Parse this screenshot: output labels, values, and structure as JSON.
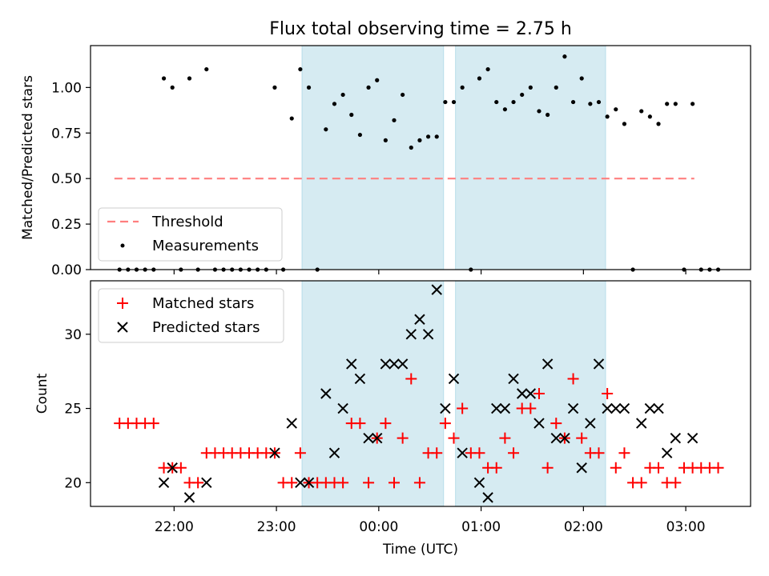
{
  "chart_data": [
    {
      "type": "scatter",
      "title": "Flux total observing time = 2.75 h",
      "xlabel": "",
      "ylabel": "Matched/Predicted stars",
      "ylim": [
        0,
        1.23
      ],
      "yticks": [
        "0.00",
        "0.25",
        "0.50",
        "0.75",
        "1.00"
      ],
      "shaded_spans": [
        [
          "23:15",
          "00:38"
        ],
        [
          "00:45",
          "02:13"
        ]
      ],
      "threshold": {
        "name": "Threshold",
        "y": 0.5,
        "x": [
          "21:25",
          "03:05"
        ],
        "color": "#ff7f7f"
      },
      "series": [
        {
          "name": "Measurements",
          "color": "#000000",
          "points": [
            [
              "21:28",
              0
            ],
            [
              "21:33",
              0
            ],
            [
              "21:38",
              0
            ],
            [
              "21:43",
              0
            ],
            [
              "21:48",
              0
            ],
            [
              "21:54",
              1.05
            ],
            [
              "21:59",
              1.0
            ],
            [
              "22:04",
              0
            ],
            [
              "22:09",
              1.05
            ],
            [
              "22:14",
              0
            ],
            [
              "22:19",
              1.1
            ],
            [
              "22:24",
              0
            ],
            [
              "22:29",
              0
            ],
            [
              "22:34",
              0
            ],
            [
              "22:39",
              0
            ],
            [
              "22:44",
              0
            ],
            [
              "22:49",
              0
            ],
            [
              "22:54",
              0
            ],
            [
              "22:59",
              1.0
            ],
            [
              "23:04",
              0
            ],
            [
              "23:09",
              0.83
            ],
            [
              "23:14",
              1.1
            ],
            [
              "23:19",
              1.0
            ],
            [
              "23:24",
              0
            ],
            [
              "23:29",
              0.77
            ],
            [
              "23:34",
              0.91
            ],
            [
              "23:39",
              0.96
            ],
            [
              "23:44",
              0.85
            ],
            [
              "23:49",
              0.74
            ],
            [
              "23:54",
              1.0
            ],
            [
              "23:59",
              1.04
            ],
            [
              "00:04",
              0.71
            ],
            [
              "00:09",
              0.82
            ],
            [
              "00:14",
              0.96
            ],
            [
              "00:19",
              0.67
            ],
            [
              "00:24",
              0.71
            ],
            [
              "00:29",
              0.73
            ],
            [
              "00:34",
              0.73
            ],
            [
              "00:39",
              0.92
            ],
            [
              "00:44",
              0.92
            ],
            [
              "00:49",
              1.0
            ],
            [
              "00:54",
              0
            ],
            [
              "00:59",
              1.05
            ],
            [
              "01:04",
              1.1
            ],
            [
              "01:09",
              0.92
            ],
            [
              "01:14",
              0.88
            ],
            [
              "01:19",
              0.92
            ],
            [
              "01:24",
              0.96
            ],
            [
              "01:29",
              1.0
            ],
            [
              "01:34",
              0.87
            ],
            [
              "01:39",
              0.85
            ],
            [
              "01:44",
              1.0
            ],
            [
              "01:49",
              1.17
            ],
            [
              "01:54",
              0.92
            ],
            [
              "01:59",
              1.05
            ],
            [
              "02:04",
              0.91
            ],
            [
              "02:09",
              0.92
            ],
            [
              "02:14",
              0.84
            ],
            [
              "02:19",
              0.88
            ],
            [
              "02:24",
              0.8
            ],
            [
              "02:29",
              0
            ],
            [
              "02:34",
              0.87
            ],
            [
              "02:39",
              0.84
            ],
            [
              "02:44",
              0.8
            ],
            [
              "02:49",
              0.91
            ],
            [
              "02:54",
              0.91
            ],
            [
              "02:59",
              0
            ],
            [
              "03:04",
              0.91
            ],
            [
              "03:09",
              0
            ],
            [
              "03:14",
              0
            ],
            [
              "03:19",
              0
            ]
          ]
        }
      ],
      "legend": {
        "position": "lower-left",
        "entries": [
          "Threshold",
          "Measurements"
        ]
      }
    },
    {
      "type": "scatter",
      "title": "",
      "xlabel": "Time (UTC)",
      "ylabel": "Count",
      "ylim": [
        18.4,
        33.6
      ],
      "yticks": [
        "20",
        "25",
        "30"
      ],
      "xticks": [
        "22:00",
        "23:00",
        "00:00",
        "01:00",
        "02:00",
        "03:00"
      ],
      "shaded_spans": [
        [
          "23:15",
          "00:38"
        ],
        [
          "00:45",
          "02:13"
        ]
      ],
      "series": [
        {
          "name": "Matched stars",
          "marker": "plus",
          "color": "#ff0000",
          "points": [
            [
              "21:28",
              24
            ],
            [
              "21:33",
              24
            ],
            [
              "21:38",
              24
            ],
            [
              "21:43",
              24
            ],
            [
              "21:48",
              24
            ],
            [
              "21:54",
              21
            ],
            [
              "21:59",
              21
            ],
            [
              "22:04",
              21
            ],
            [
              "22:09",
              20
            ],
            [
              "22:14",
              20
            ],
            [
              "22:19",
              22
            ],
            [
              "22:24",
              22
            ],
            [
              "22:29",
              22
            ],
            [
              "22:34",
              22
            ],
            [
              "22:39",
              22
            ],
            [
              "22:44",
              22
            ],
            [
              "22:49",
              22
            ],
            [
              "22:54",
              22
            ],
            [
              "22:59",
              22
            ],
            [
              "23:04",
              20
            ],
            [
              "23:09",
              20
            ],
            [
              "23:14",
              22
            ],
            [
              "23:19",
              20
            ],
            [
              "23:24",
              20
            ],
            [
              "23:29",
              20
            ],
            [
              "23:34",
              20
            ],
            [
              "23:39",
              20
            ],
            [
              "23:44",
              24
            ],
            [
              "23:49",
              24
            ],
            [
              "23:54",
              20
            ],
            [
              "23:59",
              23
            ],
            [
              "00:04",
              24
            ],
            [
              "00:09",
              20
            ],
            [
              "00:14",
              23
            ],
            [
              "00:19",
              27
            ],
            [
              "00:24",
              20
            ],
            [
              "00:29",
              22
            ],
            [
              "00:34",
              22
            ],
            [
              "00:39",
              24
            ],
            [
              "00:44",
              23
            ],
            [
              "00:49",
              25
            ],
            [
              "00:54",
              22
            ],
            [
              "00:59",
              22
            ],
            [
              "01:04",
              21
            ],
            [
              "01:09",
              21
            ],
            [
              "01:14",
              23
            ],
            [
              "01:19",
              22
            ],
            [
              "01:24",
              25
            ],
            [
              "01:29",
              25
            ],
            [
              "01:34",
              26
            ],
            [
              "01:39",
              21
            ],
            [
              "01:44",
              24
            ],
            [
              "01:49",
              23
            ],
            [
              "01:54",
              27
            ],
            [
              "01:59",
              23
            ],
            [
              "02:04",
              22
            ],
            [
              "02:09",
              22
            ],
            [
              "02:14",
              26
            ],
            [
              "02:19",
              21
            ],
            [
              "02:24",
              22
            ],
            [
              "02:29",
              20
            ],
            [
              "02:34",
              20
            ],
            [
              "02:39",
              21
            ],
            [
              "02:44",
              21
            ],
            [
              "02:49",
              20
            ],
            [
              "02:54",
              20
            ],
            [
              "02:59",
              21
            ],
            [
              "03:04",
              21
            ],
            [
              "03:09",
              21
            ],
            [
              "03:14",
              21
            ],
            [
              "03:19",
              21
            ]
          ]
        },
        {
          "name": "Predicted stars",
          "marker": "x",
          "color": "#000000",
          "points": [
            [
              "21:54",
              20
            ],
            [
              "21:59",
              21
            ],
            [
              "22:09",
              19
            ],
            [
              "22:19",
              20
            ],
            [
              "22:59",
              22
            ],
            [
              "23:09",
              24
            ],
            [
              "23:14",
              20
            ],
            [
              "23:19",
              20
            ],
            [
              "23:29",
              26
            ],
            [
              "23:34",
              22
            ],
            [
              "23:39",
              25
            ],
            [
              "23:44",
              28
            ],
            [
              "23:49",
              27
            ],
            [
              "23:54",
              23
            ],
            [
              "23:59",
              23
            ],
            [
              "24:04",
              28
            ],
            [
              "24:09",
              28
            ],
            [
              "24:14",
              28
            ],
            [
              "24:19",
              30
            ],
            [
              "24:24",
              31
            ],
            [
              "24:29",
              30
            ],
            [
              "24:34",
              33
            ],
            [
              "24:39",
              25
            ],
            [
              "24:44",
              27
            ],
            [
              "24:49",
              22
            ],
            [
              "24:59",
              20
            ],
            [
              "25:04",
              19
            ],
            [
              "25:09",
              25
            ],
            [
              "25:14",
              25
            ],
            [
              "25:19",
              27
            ],
            [
              "25:24",
              26
            ],
            [
              "25:29",
              26
            ],
            [
              "25:34",
              24
            ],
            [
              "25:39",
              28
            ],
            [
              "25:44",
              23
            ],
            [
              "25:49",
              23
            ],
            [
              "25:54",
              25
            ],
            [
              "25:59",
              21
            ],
            [
              "26:04",
              24
            ],
            [
              "26:09",
              28
            ],
            [
              "26:14",
              25
            ],
            [
              "26:19",
              25
            ],
            [
              "26:24",
              25
            ],
            [
              "26:34",
              24
            ],
            [
              "26:39",
              25
            ],
            [
              "26:44",
              25
            ],
            [
              "26:49",
              22
            ],
            [
              "26:54",
              23
            ],
            [
              "27:04",
              23
            ]
          ]
        }
      ],
      "legend": {
        "position": "upper-left",
        "entries": [
          "Matched stars",
          "Predicted stars"
        ]
      }
    }
  ]
}
